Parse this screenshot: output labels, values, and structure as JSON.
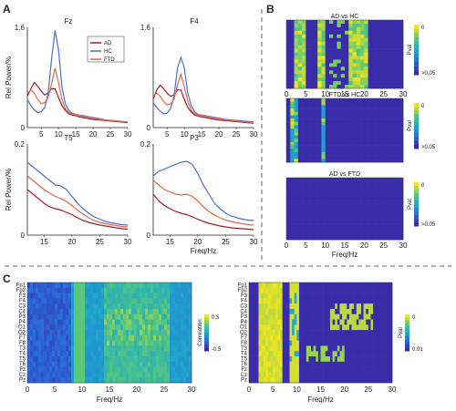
{
  "panels": {
    "a": "A",
    "b": "B",
    "c": "C"
  },
  "colors": {
    "AD": "#a31c2c",
    "HC": "#4a6fd0",
    "FTD": "#e06a45",
    "heat_low": "#3a2ca8",
    "heat_high": "#f6e51c"
  },
  "chart_data": [
    {
      "type": "line",
      "title": "Fz",
      "ylabel": "Rel Power/%",
      "xlim": [
        1,
        30
      ],
      "ylim": [
        0,
        1.6
      ],
      "xticks": [
        "5",
        "10",
        "15",
        "20",
        "25",
        "30"
      ],
      "yticks": [
        "0",
        "1.6"
      ],
      "legend": [
        "AD",
        "HC",
        "FTD"
      ],
      "x": [
        1,
        2,
        3,
        4,
        5,
        6,
        7,
        8,
        9,
        10,
        11,
        12,
        13,
        14,
        15,
        16,
        17,
        18,
        19,
        20,
        22,
        24,
        26,
        28,
        30
      ],
      "series": [
        {
          "name": "AD",
          "values": [
            0.5,
            0.62,
            0.72,
            0.66,
            0.58,
            0.52,
            0.55,
            0.62,
            0.62,
            0.48,
            0.35,
            0.27,
            0.22,
            0.2,
            0.19,
            0.17,
            0.16,
            0.15,
            0.14,
            0.13,
            0.12,
            0.11,
            0.1,
            0.09,
            0.08
          ]
        },
        {
          "name": "HC",
          "values": [
            0.45,
            0.35,
            0.28,
            0.24,
            0.25,
            0.32,
            0.55,
            1.1,
            1.55,
            1.25,
            0.65,
            0.38,
            0.27,
            0.23,
            0.21,
            0.2,
            0.19,
            0.18,
            0.17,
            0.16,
            0.14,
            0.12,
            0.11,
            0.1,
            0.09
          ]
        },
        {
          "name": "FTD",
          "values": [
            0.55,
            0.6,
            0.55,
            0.45,
            0.38,
            0.4,
            0.48,
            0.7,
            0.95,
            0.72,
            0.45,
            0.3,
            0.24,
            0.22,
            0.2,
            0.19,
            0.18,
            0.17,
            0.16,
            0.15,
            0.13,
            0.12,
            0.11,
            0.1,
            0.09
          ]
        }
      ]
    },
    {
      "type": "line",
      "title": "F4",
      "xlim": [
        1,
        30
      ],
      "ylim": [
        0,
        1.6
      ],
      "xticks": [
        "5",
        "10",
        "15",
        "20",
        "25",
        "30"
      ],
      "yticks": [
        "0",
        "1.6"
      ],
      "x": [
        1,
        2,
        3,
        4,
        5,
        6,
        7,
        8,
        9,
        10,
        11,
        12,
        13,
        14,
        15,
        16,
        17,
        18,
        19,
        20,
        22,
        24,
        26,
        28,
        30
      ],
      "series": [
        {
          "name": "AD",
          "values": [
            0.45,
            0.6,
            0.68,
            0.62,
            0.55,
            0.5,
            0.52,
            0.6,
            0.6,
            0.45,
            0.32,
            0.25,
            0.2,
            0.18,
            0.17,
            0.16,
            0.15,
            0.14,
            0.13,
            0.12,
            0.11,
            0.1,
            0.09,
            0.08,
            0.07
          ]
        },
        {
          "name": "HC",
          "values": [
            0.4,
            0.32,
            0.26,
            0.22,
            0.23,
            0.3,
            0.5,
            0.95,
            1.12,
            0.95,
            0.55,
            0.35,
            0.25,
            0.21,
            0.2,
            0.19,
            0.18,
            0.17,
            0.16,
            0.15,
            0.13,
            0.12,
            0.11,
            0.1,
            0.09
          ]
        },
        {
          "name": "FTD",
          "values": [
            0.5,
            0.55,
            0.5,
            0.42,
            0.36,
            0.38,
            0.45,
            0.68,
            0.85,
            0.65,
            0.42,
            0.28,
            0.22,
            0.2,
            0.19,
            0.18,
            0.17,
            0.16,
            0.15,
            0.14,
            0.12,
            0.11,
            0.1,
            0.09,
            0.08
          ]
        }
      ]
    },
    {
      "type": "line",
      "title": "T5",
      "xlabel": "",
      "ylabel": "Rel Power/%",
      "xlim": [
        12,
        30
      ],
      "ylim": [
        0,
        0.2
      ],
      "xticks": [
        "15",
        "20",
        "25",
        "30"
      ],
      "yticks": [
        "0",
        "0.2"
      ],
      "x": [
        12,
        13,
        14,
        15,
        16,
        17,
        18,
        19,
        20,
        21,
        22,
        23,
        24,
        25,
        26,
        27,
        28,
        29,
        30
      ],
      "series": [
        {
          "name": "AD",
          "values": [
            0.1,
            0.09,
            0.08,
            0.07,
            0.062,
            0.058,
            0.055,
            0.05,
            0.045,
            0.038,
            0.032,
            0.028,
            0.025,
            0.022,
            0.02,
            0.018,
            0.016,
            0.014,
            0.013
          ]
        },
        {
          "name": "HC",
          "values": [
            0.16,
            0.15,
            0.14,
            0.13,
            0.12,
            0.11,
            0.108,
            0.1,
            0.085,
            0.07,
            0.058,
            0.048,
            0.04,
            0.035,
            0.03,
            0.027,
            0.025,
            0.023,
            0.022
          ]
        },
        {
          "name": "FTD",
          "values": [
            0.13,
            0.12,
            0.11,
            0.1,
            0.092,
            0.085,
            0.08,
            0.074,
            0.065,
            0.055,
            0.046,
            0.038,
            0.032,
            0.028,
            0.025,
            0.023,
            0.021,
            0.019,
            0.018
          ]
        }
      ]
    },
    {
      "type": "line",
      "title": "P3",
      "xlabel": "Freq/Hz",
      "xlim": [
        12,
        30
      ],
      "ylim": [
        0,
        0.2
      ],
      "xticks": [
        "15",
        "20",
        "25",
        "30"
      ],
      "yticks": [
        "0",
        "0.2"
      ],
      "x": [
        12,
        13,
        14,
        15,
        16,
        17,
        18,
        19,
        20,
        21,
        22,
        23,
        24,
        25,
        26,
        27,
        28,
        29,
        30
      ],
      "series": [
        {
          "name": "AD",
          "values": [
            0.09,
            0.075,
            0.065,
            0.058,
            0.052,
            0.048,
            0.045,
            0.04,
            0.035,
            0.03,
            0.026,
            0.023,
            0.02,
            0.018,
            0.016,
            0.015,
            0.014,
            0.013,
            0.012
          ]
        },
        {
          "name": "HC",
          "values": [
            0.13,
            0.14,
            0.145,
            0.15,
            0.155,
            0.16,
            0.162,
            0.155,
            0.135,
            0.11,
            0.09,
            0.07,
            0.058,
            0.048,
            0.042,
            0.038,
            0.035,
            0.033,
            0.032
          ]
        },
        {
          "name": "FTD",
          "values": [
            0.12,
            0.11,
            0.1,
            0.095,
            0.09,
            0.088,
            0.09,
            0.085,
            0.075,
            0.062,
            0.052,
            0.044,
            0.038,
            0.033,
            0.03,
            0.027,
            0.025,
            0.023,
            0.022
          ]
        }
      ]
    },
    {
      "type": "heatmap",
      "title": "AD vs HC",
      "colorbar_label": "Pval",
      "colorbar_ticks": [
        "0",
        ">0.05"
      ],
      "xticks": [
        "0",
        "5",
        "10",
        "15",
        "20",
        "25",
        "30"
      ],
      "xlabel": "Freq/Hz",
      "rows": 19,
      "significant_bands": [
        [
          2,
          5
        ],
        [
          8,
          10
        ],
        [
          16,
          21
        ]
      ]
    },
    {
      "type": "heatmap",
      "title": "FTD vs HC",
      "colorbar_label": "Pval",
      "colorbar_ticks": [
        "0",
        ">0.05"
      ],
      "rows": 19,
      "significant_bands": [
        [
          1,
          3
        ],
        [
          9,
          10
        ]
      ]
    },
    {
      "type": "heatmap",
      "title": "AD vs FTD",
      "colorbar_label": "Pval",
      "colorbar_ticks": [
        "0",
        ">0.05"
      ],
      "xticks": [
        "0",
        "5",
        "10",
        "15",
        "20",
        "25",
        "30"
      ],
      "xlabel": "Freq/Hz",
      "rows": 19,
      "significant_bands": []
    },
    {
      "type": "heatmap",
      "channels": [
        "Fp1",
        "Fp2",
        "F3",
        "F4",
        "C3",
        "C4",
        "P3",
        "P4",
        "O1",
        "O2",
        "F7",
        "F8",
        "T3",
        "T4",
        "T5",
        "T6",
        "Fz",
        "Cz",
        "Pz"
      ],
      "colorbar_label": "Correlation",
      "colorbar_ticks": [
        "0.5",
        "-0.5"
      ],
      "xticks": [
        "0",
        "5",
        "10",
        "15",
        "20",
        "25",
        "30"
      ],
      "xlabel": "Freq/Hz",
      "xlim": [
        0,
        30
      ]
    },
    {
      "type": "heatmap",
      "channels": [
        "Fp1",
        "Fp2",
        "F3",
        "F4",
        "C3",
        "C4",
        "P3",
        "P4",
        "O1",
        "O2",
        "F7",
        "F8",
        "T3",
        "T4",
        "T5",
        "T6",
        "Fz",
        "Cz",
        "Pz"
      ],
      "colorbar_label": "Pval",
      "colorbar_ticks": [
        "0",
        "0.01"
      ],
      "xticks": [
        "0",
        "5",
        "10",
        "15",
        "20",
        "25",
        "30"
      ],
      "xlabel": "Freq/Hz",
      "xlim": [
        0,
        30
      ]
    }
  ]
}
